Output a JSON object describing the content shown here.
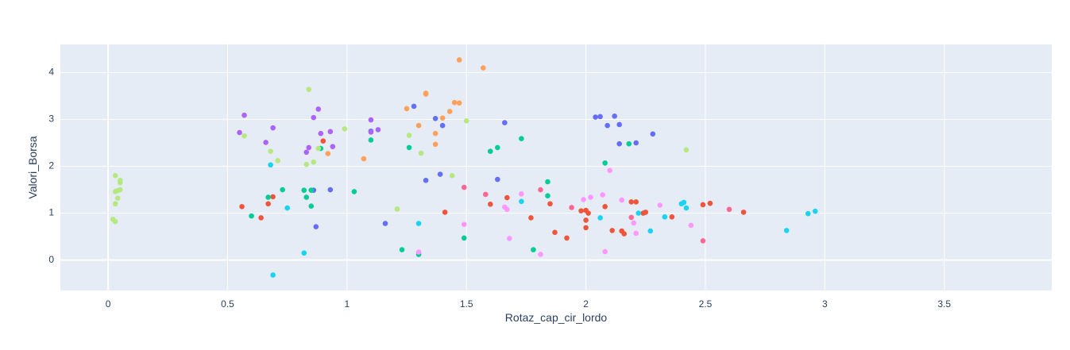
{
  "chart_data": {
    "type": "scatter",
    "title": "",
    "xlabel": "Rotaz_cap_cir_lordo",
    "ylabel": "Valori_Borsa",
    "xlim": [
      -0.2,
      3.95
    ],
    "ylim": [
      -0.65,
      4.6
    ],
    "x_ticks": [
      0,
      0.5,
      1,
      1.5,
      2,
      2.5,
      3,
      3.5
    ],
    "x_tick_labels": [
      "0",
      "0.5",
      "1",
      "1.5",
      "2",
      "2.5",
      "3",
      "3.5"
    ],
    "y_ticks": [
      0,
      1,
      2,
      3,
      4
    ],
    "y_tick_labels": [
      "0",
      "1",
      "2",
      "3",
      "4"
    ],
    "grid": true,
    "legend": "none",
    "colors": {
      "plot_bg": "#e5ecf6",
      "grid": "#ffffff",
      "text": "#2a3f5f"
    },
    "series": [
      {
        "color": "#636efa",
        "points": [
          [
            1.1,
            2.75
          ],
          [
            1.28,
            3.28
          ],
          [
            1.37,
            3.02
          ],
          [
            1.4,
            2.87
          ],
          [
            1.16,
            0.78
          ],
          [
            0.93,
            1.5
          ],
          [
            0.87,
            0.71
          ],
          [
            0.86,
            1.49
          ],
          [
            1.33,
            1.7
          ],
          [
            1.39,
            1.83
          ],
          [
            1.63,
            1.72
          ],
          [
            1.66,
            2.93
          ],
          [
            2.04,
            3.05
          ],
          [
            2.06,
            3.06
          ],
          [
            2.09,
            2.87
          ],
          [
            2.12,
            3.07
          ],
          [
            2.14,
            2.89
          ],
          [
            2.14,
            2.48
          ],
          [
            2.21,
            2.5
          ],
          [
            2.28,
            2.69
          ]
        ]
      },
      {
        "color": "#ef553b",
        "points": [
          [
            0.56,
            1.14
          ],
          [
            0.64,
            0.9
          ],
          [
            0.67,
            1.2
          ],
          [
            0.69,
            1.35
          ],
          [
            0.9,
            2.54
          ],
          [
            1.41,
            1.02
          ],
          [
            1.6,
            1.19
          ],
          [
            1.67,
            1.33
          ],
          [
            1.77,
            0.9
          ],
          [
            1.85,
            1.2
          ],
          [
            1.87,
            0.59
          ],
          [
            1.92,
            0.47
          ],
          [
            1.98,
            1.05
          ],
          [
            2.0,
            1.06
          ],
          [
            2.01,
            1.0
          ],
          [
            2.0,
            0.85
          ],
          [
            2.0,
            0.69
          ],
          [
            2.08,
            1.14
          ],
          [
            2.11,
            0.63
          ],
          [
            2.15,
            0.62
          ],
          [
            2.16,
            0.56
          ],
          [
            2.19,
            1.24
          ],
          [
            2.21,
            1.24
          ],
          [
            2.24,
            1.0
          ],
          [
            2.25,
            1.02
          ],
          [
            2.36,
            0.92
          ],
          [
            2.49,
            1.18
          ],
          [
            2.52,
            1.21
          ],
          [
            2.66,
            1.02
          ]
        ]
      },
      {
        "color": "#00cc96",
        "points": [
          [
            0.6,
            0.94
          ],
          [
            0.67,
            1.34
          ],
          [
            0.73,
            1.5
          ],
          [
            0.82,
            1.49
          ],
          [
            0.83,
            1.34
          ],
          [
            0.85,
            1.49
          ],
          [
            0.85,
            1.15
          ],
          [
            0.89,
            2.38
          ],
          [
            1.03,
            1.46
          ],
          [
            1.1,
            2.56
          ],
          [
            1.23,
            0.22
          ],
          [
            1.26,
            2.4
          ],
          [
            1.3,
            0.12
          ],
          [
            1.49,
            0.47
          ],
          [
            1.6,
            2.32
          ],
          [
            1.63,
            2.4
          ],
          [
            1.73,
            2.59
          ],
          [
            1.78,
            0.22
          ],
          [
            1.84,
            1.67
          ],
          [
            1.84,
            1.37
          ],
          [
            2.08,
            2.07
          ],
          [
            2.18,
            2.48
          ]
        ]
      },
      {
        "color": "#ab63fa",
        "points": [
          [
            0.55,
            2.72
          ],
          [
            0.57,
            3.09
          ],
          [
            0.66,
            2.51
          ],
          [
            0.69,
            2.82
          ],
          [
            0.83,
            2.3
          ],
          [
            0.84,
            2.4
          ],
          [
            0.86,
            3.04
          ],
          [
            0.88,
            3.22
          ],
          [
            0.89,
            2.7
          ],
          [
            0.93,
            2.74
          ],
          [
            0.94,
            2.42
          ],
          [
            1.1,
            2.99
          ],
          [
            1.1,
            2.73
          ],
          [
            1.13,
            2.78
          ]
        ]
      },
      {
        "color": "#ffa15a",
        "points": [
          [
            0.92,
            2.27
          ],
          [
            1.07,
            2.16
          ],
          [
            1.25,
            3.23
          ],
          [
            1.3,
            2.87
          ],
          [
            1.33,
            3.54
          ],
          [
            1.33,
            3.56
          ],
          [
            1.37,
            2.47
          ],
          [
            1.37,
            2.7
          ],
          [
            1.4,
            3.03
          ],
          [
            1.43,
            3.17
          ],
          [
            1.45,
            3.36
          ],
          [
            1.47,
            3.35
          ],
          [
            1.47,
            4.27
          ],
          [
            1.57,
            4.1
          ]
        ]
      },
      {
        "color": "#19d3f3",
        "points": [
          [
            0.68,
            2.03
          ],
          [
            0.69,
            -0.32
          ],
          [
            0.75,
            1.11
          ],
          [
            0.82,
            0.15
          ],
          [
            1.3,
            0.78
          ],
          [
            1.73,
            1.25
          ],
          [
            2.06,
            0.9
          ],
          [
            2.22,
            1.0
          ],
          [
            2.27,
            0.62
          ],
          [
            2.33,
            0.92
          ],
          [
            2.4,
            1.2
          ],
          [
            2.41,
            1.23
          ],
          [
            2.42,
            1.11
          ],
          [
            2.84,
            0.63
          ],
          [
            2.93,
            0.99
          ],
          [
            2.96,
            1.04
          ]
        ]
      },
      {
        "color": "#ff6692",
        "points": [
          [
            1.49,
            1.55
          ],
          [
            1.58,
            1.4
          ],
          [
            1.81,
            1.5
          ],
          [
            1.94,
            1.12
          ],
          [
            2.19,
            0.91
          ],
          [
            2.49,
            0.41
          ],
          [
            2.6,
            1.08
          ]
        ]
      },
      {
        "color": "#b6e880",
        "points": [
          [
            0.02,
            0.87
          ],
          [
            0.03,
            0.82
          ],
          [
            0.03,
            1.2
          ],
          [
            0.03,
            1.46
          ],
          [
            0.03,
            1.8
          ],
          [
            0.04,
            1.32
          ],
          [
            0.04,
            1.48
          ],
          [
            0.05,
            1.5
          ],
          [
            0.05,
            1.65
          ],
          [
            0.05,
            1.7
          ],
          [
            0.57,
            2.65
          ],
          [
            0.68,
            2.32
          ],
          [
            0.71,
            2.12
          ],
          [
            0.83,
            2.04
          ],
          [
            0.84,
            3.64
          ],
          [
            0.86,
            2.09
          ],
          [
            0.88,
            2.38
          ],
          [
            0.99,
            2.8
          ],
          [
            1.21,
            1.09
          ],
          [
            1.26,
            2.66
          ],
          [
            1.31,
            2.28
          ],
          [
            1.44,
            1.8
          ],
          [
            1.5,
            2.97
          ],
          [
            2.42,
            2.35
          ]
        ]
      },
      {
        "color": "#ff97ff",
        "points": [
          [
            1.3,
            0.17
          ],
          [
            1.49,
            0.76
          ],
          [
            1.66,
            1.13
          ],
          [
            1.67,
            1.08
          ],
          [
            1.68,
            0.46
          ],
          [
            1.73,
            1.41
          ],
          [
            1.81,
            0.12
          ],
          [
            1.99,
            1.29
          ],
          [
            2.02,
            1.34
          ],
          [
            2.07,
            1.39
          ],
          [
            2.08,
            0.18
          ],
          [
            2.1,
            1.91
          ],
          [
            2.15,
            1.28
          ],
          [
            2.2,
            0.79
          ],
          [
            2.21,
            0.57
          ],
          [
            2.31,
            1.17
          ],
          [
            2.44,
            0.74
          ]
        ]
      }
    ]
  }
}
